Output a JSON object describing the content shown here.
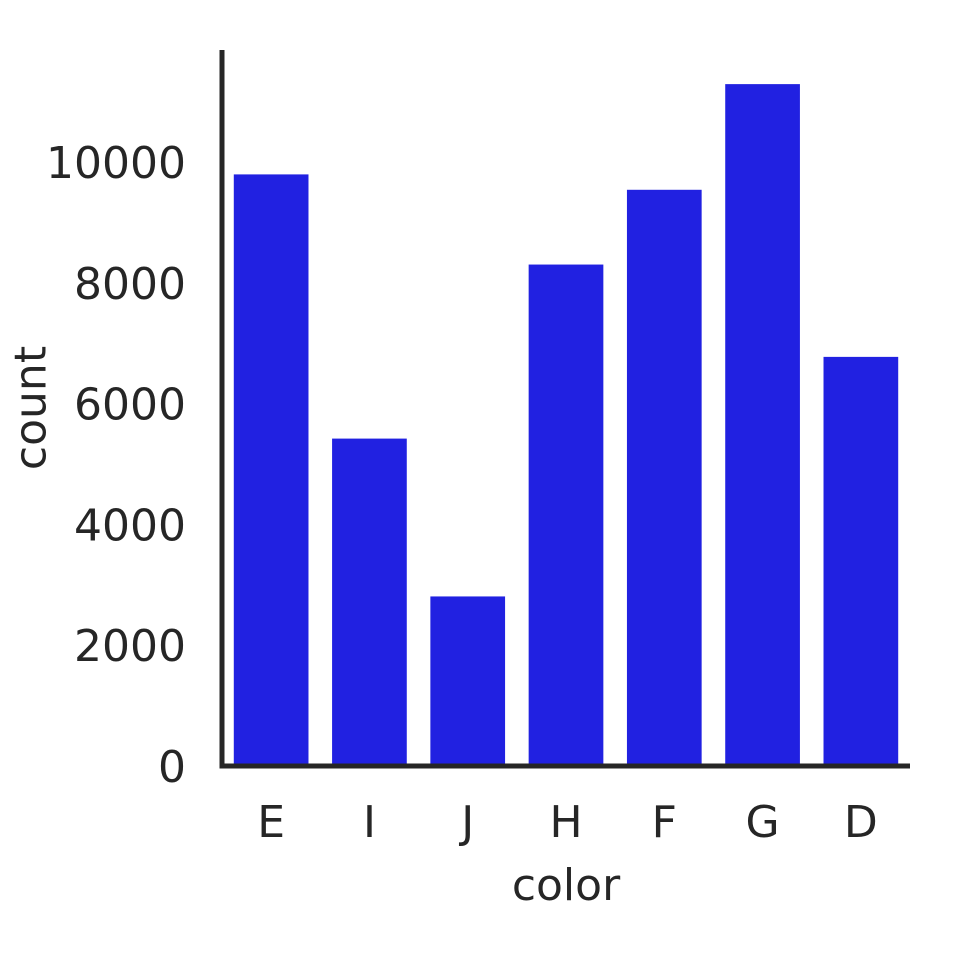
{
  "chart_data": {
    "type": "bar",
    "categories": [
      "E",
      "I",
      "J",
      "H",
      "F",
      "G",
      "D"
    ],
    "values": [
      9797,
      5422,
      2808,
      8304,
      9542,
      11292,
      6775
    ],
    "xlabel": "color",
    "ylabel": "count",
    "ylim": [
      0,
      11857
    ],
    "yticks": [
      0,
      2000,
      4000,
      6000,
      8000,
      10000
    ],
    "ytick_labels": [
      "0",
      "2000",
      "4000",
      "6000",
      "8000",
      "10000"
    ],
    "grid": false,
    "legend": "none",
    "colors": {
      "bar": "#2121e1",
      "axis": "#262626",
      "text": "#262626"
    }
  }
}
